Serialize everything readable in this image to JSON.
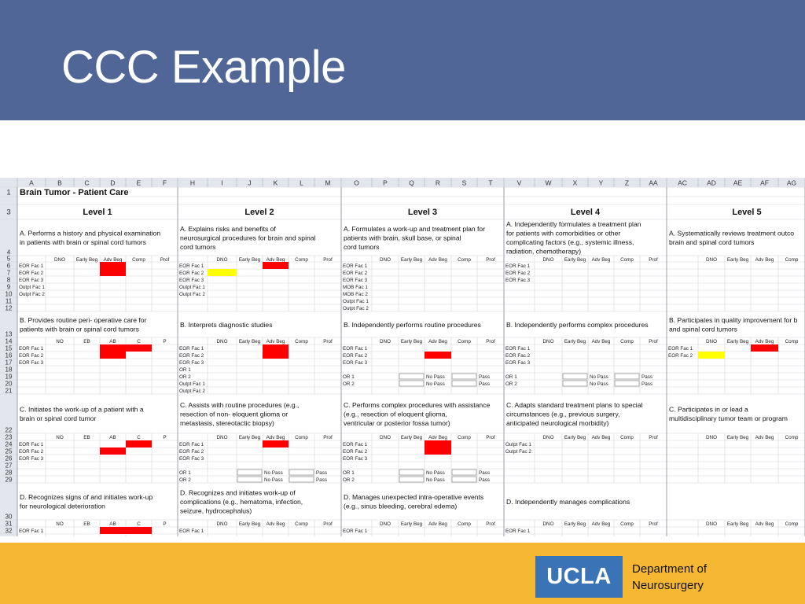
{
  "slide": {
    "title": "CCC Example",
    "logo_text": "UCLA",
    "dept_line1": "Department of",
    "dept_line2": "Neurosurgery"
  },
  "colors": {
    "title_bar": "#4f6696",
    "footer": "#f6b833",
    "logo_bg": "#3a74b7",
    "red": "#ff0000",
    "yellow": "#ffff00"
  },
  "sheet": {
    "column_letters": [
      "A",
      "B",
      "C",
      "D",
      "E",
      "F",
      "H",
      "I",
      "J",
      "K",
      "L",
      "M",
      "O",
      "P",
      "Q",
      "R",
      "S",
      "T",
      "V",
      "W",
      "X",
      "Y",
      "Z",
      "AA",
      "AC",
      "AD",
      "AE",
      "AF",
      "AG"
    ],
    "row_numbers": [
      "1",
      "3",
      "4",
      "5",
      "6",
      "7",
      "8",
      "9",
      "10",
      "11",
      "12",
      "13",
      "14",
      "15",
      "16",
      "17",
      "18",
      "19",
      "20",
      "21",
      "22",
      "23",
      "24",
      "25",
      "26",
      "27",
      "28",
      "29",
      "30",
      "31",
      "32"
    ],
    "sheet_title": "Brain Tumor - Patient Care",
    "levels": [
      "Level 1",
      "Level 2",
      "Level 3",
      "Level 4",
      "Level 5"
    ],
    "rating_headers": [
      "DNO",
      "Early Beg",
      "Adv Beg",
      "Comp",
      "Prof"
    ],
    "rating_headers_short": [
      "NO",
      "EB",
      "AB",
      "C",
      "P"
    ],
    "pass_labels": {
      "no_pass": "No Pass",
      "pass": "Pass"
    },
    "blocks": [
      {
        "items": [
          "A. Performs a history and physical examination in patients with brain or spinal cord tumors",
          "A. Explains risks and benefits of neurosurgical procedures for brain and spinal cord tumors",
          "A. Formulates a work-up and treatment plan for patients with brain, skull base, or spinal cord tumors",
          "A. Independently formulates a treatment plan for patients with comorbidities or other complicating factors (e.g., systemic illness, radiation, chemotherapy)",
          "A. Systematically reviews treatment outco brain and spinal cord tumors"
        ],
        "raters": [
          [
            "EOR Fac 1",
            "EOR Fac 2",
            "EOR Fac 3",
            "Outpt Fac 1",
            "Outpt Fac 2"
          ],
          [
            "EOR Fac 1",
            "EOR Fac 2",
            "EOR Fac 3",
            "Outpt Fac 1",
            "Outpt Fac 2"
          ],
          [
            "EOR Fac 1",
            "EOR Fac 2",
            "EOR Fac 3",
            "MOB Fac 1",
            "MOB Fac 2",
            "Outpt Fac 1",
            "Outpt Fac 2"
          ],
          [
            "EOR Fac 1",
            "EOR Fac 2",
            "EOR Fac 3"
          ],
          []
        ]
      },
      {
        "items": [
          "B. Provides routine peri- operative care for patients with brain or spinal cord tumors",
          "B. Interprets diagnostic studies",
          "B. Independently performs routine procedures",
          "B. Independently performs complex procedures",
          "B. Participates in quality improvement for b and spinal cord tumors"
        ],
        "raters": [
          [
            "EOR Fac 1",
            "EOR Fac 2",
            "EOR Fac 3"
          ],
          [
            "EOR Fac 1",
            "EOR Fac 2",
            "EOR Fac 3",
            "OR 1",
            "OR 2",
            "Outpt Fac 1",
            "Outpt Fac 2"
          ],
          [
            "EOR Fac 1",
            "EOR Fac 2",
            "EOR Fac 3",
            "",
            "OR 1",
            "OR 2"
          ],
          [
            "EOR Fac 1",
            "EOR Fac 2",
            "EOR Fac 3",
            "",
            "OR 1",
            "OR 2"
          ],
          [
            "EOR Fac 1",
            "EOR Fac 2"
          ]
        ]
      },
      {
        "items": [
          "C. Initiates the work-up of a patient with a brain or spinal cord tumor",
          "C. Assists with routine procedures (e.g., resection of non- eloquent glioma or metastasis, stereotactic biopsy)",
          "C. Performs complex procedures with assistance (e.g., resection of eloquent glioma, ventricular or posterior fossa tumor)",
          "C. Adapts standard treatment plans to special circumstances (e.g., previous surgery, anticipated neurological morbidity)",
          "C. Participates in or lead a multidisciplinary tumor team or program"
        ],
        "raters": [
          [
            "EOR Fac 1",
            "EOR Fac 2",
            "EOR Fac 3"
          ],
          [
            "EOR Fac 1",
            "EOR Fac 2",
            "EOR Fac 3",
            "",
            "OR 1",
            "OR 2"
          ],
          [
            "EOR Fac 1",
            "EOR Fac 2",
            "EOR Fac 3",
            "",
            "OR 1",
            "OR 2"
          ],
          [
            "Outpt Fac 1",
            "Outpt Fac 2"
          ],
          []
        ]
      },
      {
        "items": [
          "D. Recognizes signs of and initiates work-up for neurological deterioration",
          "D. Recognizes and initiates work-up of complications (e.g., hematoma, infection, seizure, hydrocephalus)",
          "D. Manages unexpected intra-operative events (e.g., sinus bleeding, cerebral edema)",
          "D. Independently manages complications",
          ""
        ],
        "raters": [
          [
            "EOR Fac 1"
          ],
          [
            "EOR Fac 1"
          ],
          [
            "EOR Fac 1"
          ],
          [
            "EOR Fac 1"
          ],
          []
        ]
      }
    ]
  }
}
